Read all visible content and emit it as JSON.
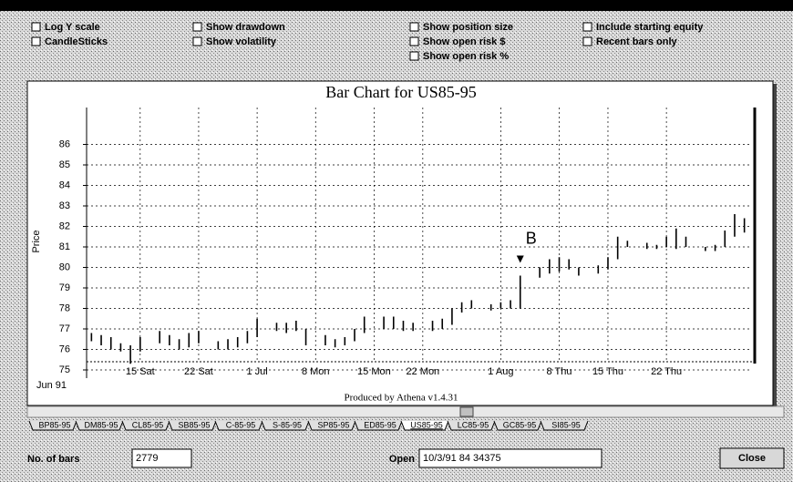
{
  "checkboxes": [
    "Log Y scale",
    "CandleSticks",
    "Show drawdown",
    "Show volatility",
    "Show position size",
    "Show open risk $",
    "Show open risk %",
    "Include starting equity",
    "Recent bars only"
  ],
  "chart_data": {
    "type": "ohlc",
    "title": "Bar Chart for US85-95",
    "y_label": "Price",
    "x_start_label": "Jun 91",
    "footer": "Produced by Athena v1.4.31",
    "grid": true,
    "ylim": [
      74.6,
      87.8
    ],
    "yticks": [
      75,
      76,
      77,
      78,
      79,
      80,
      81,
      82,
      83,
      84,
      85,
      86
    ],
    "xticks": [
      {
        "value": 5,
        "label": "15 Sat"
      },
      {
        "value": 11,
        "label": "22 Sat"
      },
      {
        "value": 17,
        "label": "1 Jul"
      },
      {
        "value": 23,
        "label": "8 Mon"
      },
      {
        "value": 29,
        "label": "15 Mon"
      },
      {
        "value": 34,
        "label": "22 Mon"
      },
      {
        "value": 42,
        "label": "1 Aug"
      },
      {
        "value": 48,
        "label": "8 Thu"
      },
      {
        "value": 53,
        "label": "15 Thu"
      },
      {
        "value": 59,
        "label": "22 Thu"
      }
    ],
    "annotations": [
      {
        "text": "B",
        "index": 44
      }
    ],
    "high": [
      76.8,
      76.7,
      76.6,
      76.3,
      76.2,
      76.6,
      null,
      76.9,
      76.7,
      76.5,
      76.8,
      76.9,
      null,
      76.4,
      76.5,
      76.6,
      76.9,
      77.5,
      null,
      77.3,
      77.3,
      77.4,
      77.0,
      null,
      76.7,
      76.5,
      76.6,
      77.0,
      77.6,
      null,
      77.6,
      77.6,
      77.4,
      77.3,
      null,
      77.4,
      77.5,
      78.0,
      78.3,
      78.4,
      null,
      78.2,
      78.3,
      78.4,
      79.6,
      null,
      80.0,
      80.4,
      80.5,
      80.4,
      80.0,
      null,
      80.1,
      80.5,
      81.5,
      81.3,
      null,
      81.2,
      81.1,
      81.5,
      81.9,
      81.5,
      null,
      81.0,
      81.1,
      81.8,
      82.6,
      82.4
    ],
    "low": [
      76.4,
      76.2,
      76.0,
      75.9,
      75.3,
      75.9,
      null,
      76.3,
      76.2,
      76.0,
      76.1,
      76.3,
      null,
      76.0,
      76.0,
      76.1,
      76.3,
      76.6,
      null,
      76.9,
      76.8,
      76.9,
      76.2,
      null,
      76.2,
      76.1,
      76.2,
      76.4,
      76.8,
      null,
      77.0,
      77.0,
      76.9,
      76.9,
      null,
      76.9,
      77.0,
      77.2,
      77.8,
      78.0,
      null,
      77.9,
      78.0,
      78.0,
      78.0,
      null,
      79.5,
      79.7,
      79.8,
      79.9,
      79.6,
      null,
      79.7,
      79.9,
      80.4,
      81.0,
      null,
      80.9,
      80.9,
      81.0,
      80.9,
      81.0,
      null,
      80.8,
      80.8,
      81.0,
      81.5,
      81.7
    ]
  },
  "tabs": [
    "BP85-95",
    "DM85-95",
    "CL85-95",
    "SB85-95",
    "C-85-95",
    "S-85-95",
    "SP85-95",
    "ED85-95",
    "US85-95",
    "LC85-95",
    "GC85-95",
    "SI85-95"
  ],
  "selected_tab": 8,
  "fields": {
    "bars_label": "No. of bars",
    "bars_value": "2779",
    "open_label": "Open",
    "open_value": "10/3/91  84 34375"
  },
  "close_button": "Close"
}
